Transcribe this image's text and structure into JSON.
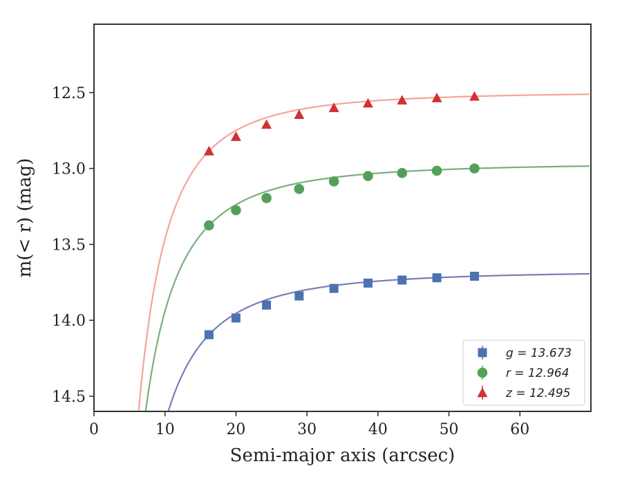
{
  "chart_data": {
    "type": "scatter",
    "title": "",
    "xlabel": "Semi-major axis (arcsec)",
    "ylabel": "m(< r) (mag)",
    "xlim": [
      0,
      70
    ],
    "ylim": [
      14.6,
      12.05
    ],
    "y_inverted": true,
    "x_ticks": [
      0,
      10,
      20,
      30,
      40,
      50,
      60
    ],
    "x_tick_labels": [
      "0",
      "10",
      "20",
      "30",
      "40",
      "50",
      "60"
    ],
    "y_ticks": [
      12.5,
      13.0,
      13.5,
      14.0,
      14.5
    ],
    "y_tick_labels": [
      "12.5",
      "13.0",
      "13.5",
      "14.0",
      "14.5"
    ],
    "grid": false,
    "legend_position": "bottom-right",
    "series": [
      {
        "name": "g",
        "legend_label": "g = 13.673",
        "marker": "square",
        "color": "#4c72b0",
        "curve_color": "#7b7bb8",
        "asymptote": 13.673,
        "x": [
          16.2,
          20.0,
          24.3,
          28.9,
          33.8,
          38.6,
          43.4,
          48.3,
          53.6
        ],
        "y": [
          14.095,
          13.985,
          13.9,
          13.84,
          13.79,
          13.755,
          13.735,
          13.72,
          13.71
        ]
      },
      {
        "name": "r",
        "legend_label": "r = 12.964",
        "marker": "circle",
        "color": "#55a058",
        "curve_color": "#7aae7c",
        "asymptote": 12.964,
        "x": [
          16.2,
          20.0,
          24.3,
          28.9,
          33.8,
          38.6,
          43.4,
          48.3,
          53.6
        ],
        "y": [
          13.375,
          13.275,
          13.195,
          13.135,
          13.085,
          13.05,
          13.03,
          13.015,
          13.0
        ]
      },
      {
        "name": "z",
        "legend_label": "z = 12.495",
        "marker": "triangle",
        "color": "#d03234",
        "curve_color": "#f4a49a",
        "asymptote": 12.495,
        "x": [
          16.2,
          20.0,
          24.3,
          28.9,
          33.8,
          38.6,
          43.4,
          48.3,
          53.6
        ],
        "y": [
          12.885,
          12.79,
          12.71,
          12.645,
          12.6,
          12.57,
          12.55,
          12.535,
          12.525
        ]
      }
    ]
  }
}
